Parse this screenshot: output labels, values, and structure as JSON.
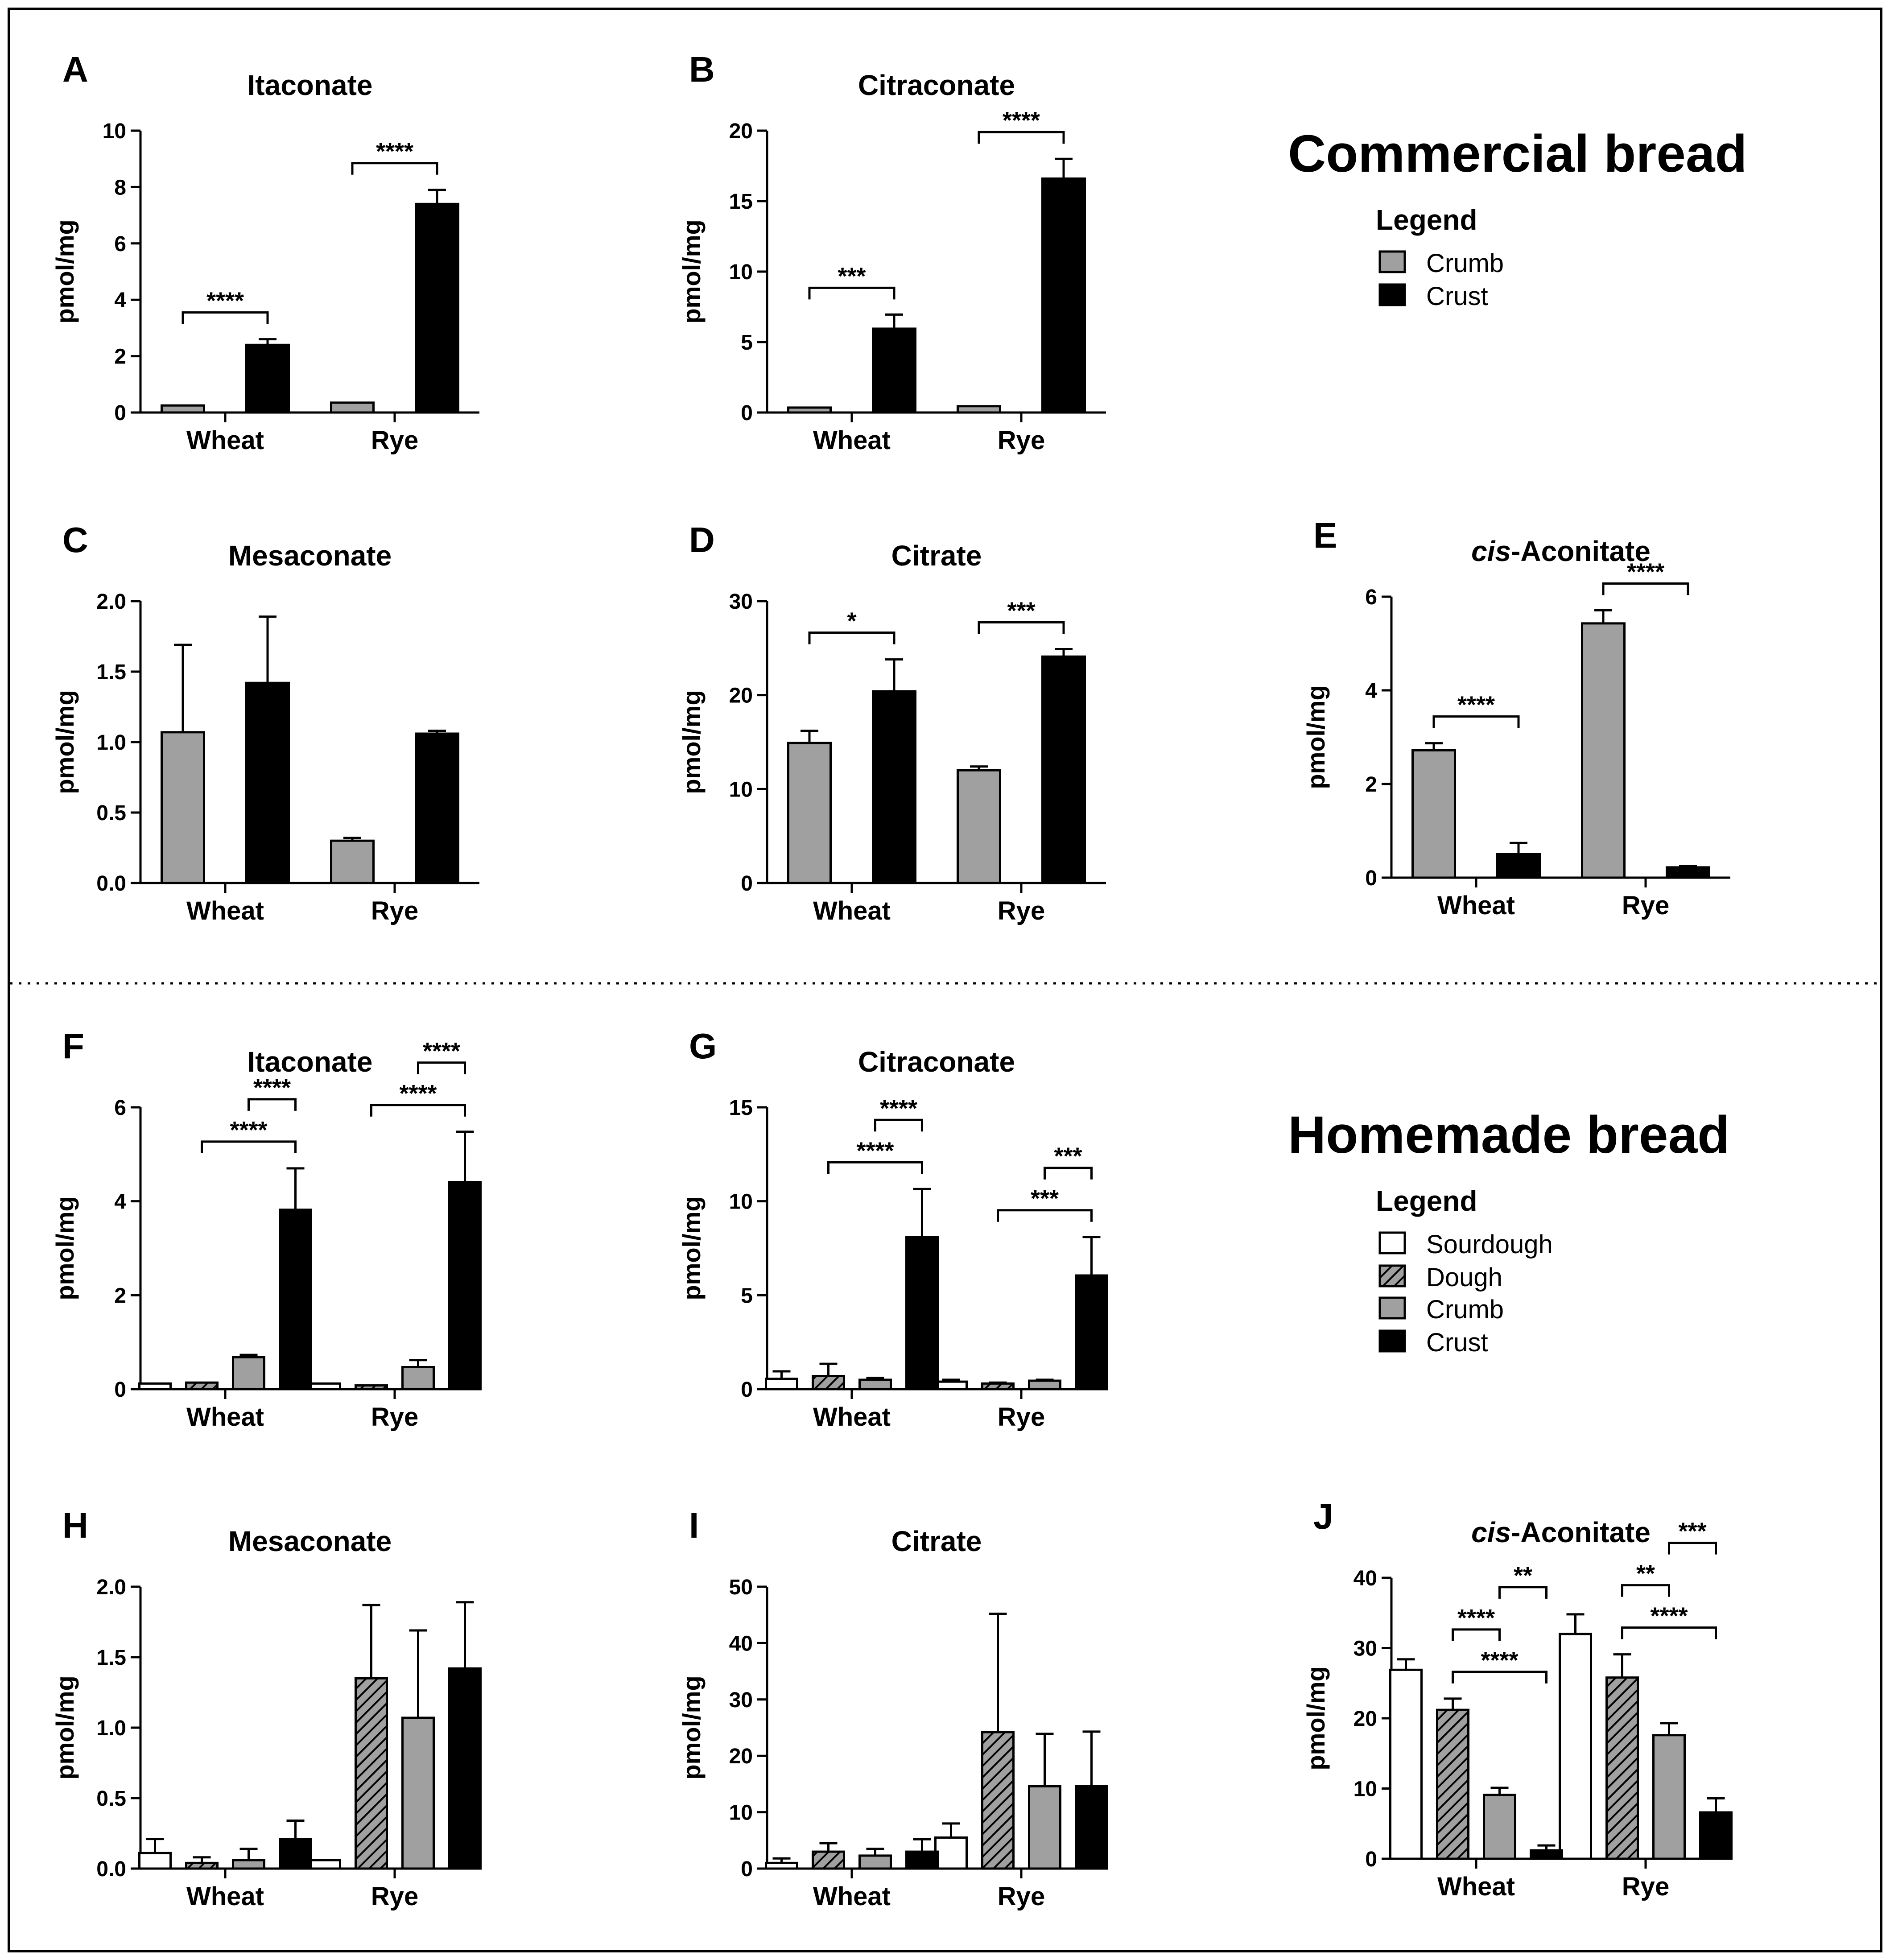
{
  "sections": [
    {
      "title": "Commercial bread",
      "legend_title": "Legend",
      "legend_items": [
        "Crumb",
        "Crust"
      ]
    },
    {
      "title": "Homemade bread",
      "legend_title": "Legend",
      "legend_items": [
        "Sourdough",
        "Dough",
        "Crumb",
        "Crust"
      ]
    }
  ],
  "colors": {
    "Sourdough": "#ffffff",
    "Dough": "#a0a0a0",
    "Crumb": "#a0a0a0",
    "Crust": "#000000"
  },
  "chart_data": [
    {
      "panel": "A",
      "type": "bar",
      "title": "Itaconate",
      "ylabel": "pmol/mg",
      "categories": [
        "Wheat",
        "Rye"
      ],
      "ylim": [
        0,
        10
      ],
      "yticks": [
        "0",
        "2",
        "4",
        "6",
        "8",
        "10"
      ],
      "series": [
        {
          "name": "Crumb",
          "values": [
            0.25,
            0.35
          ],
          "errors": [
            0,
            0
          ]
        },
        {
          "name": "Crust",
          "values": [
            2.4,
            7.4
          ],
          "errors": [
            0.2,
            0.5
          ]
        }
      ],
      "significance": [
        {
          "group": "Wheat",
          "from": "Crumb",
          "to": "Crust",
          "label": "****"
        },
        {
          "group": "Rye",
          "from": "Crumb",
          "to": "Crust",
          "label": "****"
        }
      ]
    },
    {
      "panel": "B",
      "type": "bar",
      "title": "Citraconate",
      "ylabel": "pmol/mg",
      "categories": [
        "Wheat",
        "Rye"
      ],
      "ylim": [
        0,
        20
      ],
      "yticks": [
        "0",
        "5",
        "10",
        "15",
        "20"
      ],
      "series": [
        {
          "name": "Crumb",
          "values": [
            0.35,
            0.45
          ],
          "errors": [
            0,
            0
          ]
        },
        {
          "name": "Crust",
          "values": [
            5.95,
            16.6
          ],
          "errors": [
            1.0,
            1.4
          ]
        }
      ],
      "significance": [
        {
          "group": "Wheat",
          "from": "Crumb",
          "to": "Crust",
          "label": "***"
        },
        {
          "group": "Rye",
          "from": "Crumb",
          "to": "Crust",
          "label": "****"
        }
      ]
    },
    {
      "panel": "C",
      "type": "bar",
      "title": "Mesaconate",
      "ylabel": "pmol/mg",
      "categories": [
        "Wheat",
        "Rye"
      ],
      "ylim": [
        0,
        2.0
      ],
      "yticks": [
        "0.0",
        "0.5",
        "1.0",
        "1.5",
        "2.0"
      ],
      "series": [
        {
          "name": "Crumb",
          "values": [
            1.07,
            0.3
          ],
          "errors": [
            0.62,
            0.02
          ]
        },
        {
          "name": "Crust",
          "values": [
            1.42,
            1.06
          ],
          "errors": [
            0.47,
            0.02
          ]
        }
      ],
      "significance": []
    },
    {
      "panel": "D",
      "type": "bar",
      "title": "Citrate",
      "ylabel": "pmol/mg",
      "categories": [
        "Wheat",
        "Rye"
      ],
      "ylim": [
        0,
        30
      ],
      "yticks": [
        "0",
        "10",
        "20",
        "30"
      ],
      "series": [
        {
          "name": "Crumb",
          "values": [
            14.9,
            12.0
          ],
          "errors": [
            1.3,
            0.4
          ]
        },
        {
          "name": "Crust",
          "values": [
            20.4,
            24.1
          ],
          "errors": [
            3.4,
            0.8
          ]
        }
      ],
      "significance": [
        {
          "group": "Wheat",
          "from": "Crumb",
          "to": "Crust",
          "label": "*"
        },
        {
          "group": "Rye",
          "from": "Crumb",
          "to": "Crust",
          "label": "***"
        }
      ]
    },
    {
      "panel": "E",
      "type": "bar",
      "title": "cis-Aconitate",
      "ylabel": "pmol/mg",
      "categories": [
        "Wheat",
        "Rye"
      ],
      "ylim": [
        0,
        6
      ],
      "yticks": [
        "0",
        "2",
        "4",
        "6"
      ],
      "series": [
        {
          "name": "Crumb",
          "values": [
            2.72,
            5.43
          ],
          "errors": [
            0.15,
            0.28
          ]
        },
        {
          "name": "Crust",
          "values": [
            0.5,
            0.22
          ],
          "errors": [
            0.24,
            0.03
          ]
        }
      ],
      "significance": [
        {
          "group": "Wheat",
          "from": "Crumb",
          "to": "Crust",
          "label": "****"
        },
        {
          "group": "Rye",
          "from": "Crumb",
          "to": "Crust",
          "label": "****"
        }
      ]
    },
    {
      "panel": "F",
      "type": "bar",
      "title": "Itaconate",
      "ylabel": "pmol/mg",
      "categories": [
        "Wheat",
        "Rye"
      ],
      "ylim": [
        0,
        6
      ],
      "yticks": [
        "0",
        "2",
        "4",
        "6"
      ],
      "series": [
        {
          "name": "Sourdough",
          "values": [
            0.12,
            0.12
          ],
          "errors": [
            0,
            0
          ]
        },
        {
          "name": "Dough",
          "values": [
            0.14,
            0.08
          ],
          "errors": [
            0,
            0
          ]
        },
        {
          "name": "Crumb",
          "values": [
            0.68,
            0.47
          ],
          "errors": [
            0.05,
            0.15
          ]
        },
        {
          "name": "Crust",
          "values": [
            3.82,
            4.41
          ],
          "errors": [
            0.88,
            1.07
          ]
        }
      ],
      "significance": [
        {
          "group": "Wheat",
          "from": "Dough",
          "to": "Crust",
          "label": "****"
        },
        {
          "group": "Wheat",
          "from": "Crumb",
          "to": "Crust",
          "label": "****"
        },
        {
          "group": "Rye",
          "from": "Dough",
          "to": "Crust",
          "label": "****"
        },
        {
          "group": "Rye",
          "from": "Crumb",
          "to": "Crust",
          "label": "****"
        }
      ]
    },
    {
      "panel": "G",
      "type": "bar",
      "title": "Citraconate",
      "ylabel": "pmol/mg",
      "categories": [
        "Wheat",
        "Rye"
      ],
      "ylim": [
        0,
        15
      ],
      "yticks": [
        "0",
        "5",
        "10",
        "15"
      ],
      "series": [
        {
          "name": "Sourdough",
          "values": [
            0.55,
            0.4
          ],
          "errors": [
            0.4,
            0.1
          ]
        },
        {
          "name": "Dough",
          "values": [
            0.7,
            0.3
          ],
          "errors": [
            0.65,
            0.05
          ]
        },
        {
          "name": "Crumb",
          "values": [
            0.5,
            0.45
          ],
          "errors": [
            0.1,
            0.05
          ]
        },
        {
          "name": "Crust",
          "values": [
            8.1,
            6.05
          ],
          "errors": [
            2.55,
            2.05
          ]
        }
      ],
      "significance": [
        {
          "group": "Wheat",
          "from": "Dough",
          "to": "Crust",
          "label": "****"
        },
        {
          "group": "Wheat",
          "from": "Crumb",
          "to": "Crust",
          "label": "****"
        },
        {
          "group": "Rye",
          "from": "Dough",
          "to": "Crust",
          "label": "***"
        },
        {
          "group": "Rye",
          "from": "Crumb",
          "to": "Crust",
          "label": "***"
        }
      ]
    },
    {
      "panel": "H",
      "type": "bar",
      "title": "Mesaconate",
      "ylabel": "pmol/mg",
      "categories": [
        "Wheat",
        "Rye"
      ],
      "ylim": [
        0,
        2.0
      ],
      "yticks": [
        "0.0",
        "0.5",
        "1.0",
        "1.5",
        "2.0"
      ],
      "series": [
        {
          "name": "Sourdough",
          "values": [
            0.11,
            0.06
          ],
          "errors": [
            0.1,
            0
          ]
        },
        {
          "name": "Dough",
          "values": [
            0.04,
            1.35
          ],
          "errors": [
            0.04,
            0.52
          ]
        },
        {
          "name": "Crumb",
          "values": [
            0.06,
            1.07
          ],
          "errors": [
            0.08,
            0.62
          ]
        },
        {
          "name": "Crust",
          "values": [
            0.21,
            1.42
          ],
          "errors": [
            0.13,
            0.47
          ]
        }
      ],
      "significance": []
    },
    {
      "panel": "I",
      "type": "bar",
      "title": "Citrate",
      "ylabel": "pmol/mg",
      "categories": [
        "Wheat",
        "Rye"
      ],
      "ylim": [
        0,
        50
      ],
      "yticks": [
        "0",
        "10",
        "20",
        "30",
        "40",
        "50"
      ],
      "series": [
        {
          "name": "Sourdough",
          "values": [
            1.0,
            5.5
          ],
          "errors": [
            0.8,
            2.5
          ]
        },
        {
          "name": "Dough",
          "values": [
            3.0,
            24.2
          ],
          "errors": [
            1.5,
            21.0
          ]
        },
        {
          "name": "Crumb",
          "values": [
            2.3,
            14.6
          ],
          "errors": [
            1.2,
            9.3
          ]
        },
        {
          "name": "Crust",
          "values": [
            3.0,
            14.6
          ],
          "errors": [
            2.2,
            9.7
          ]
        }
      ],
      "significance": []
    },
    {
      "panel": "J",
      "type": "bar",
      "title": "cis-Aconitate",
      "ylabel": "pmol/mg",
      "categories": [
        "Wheat",
        "Rye"
      ],
      "ylim": [
        0,
        40
      ],
      "yticks": [
        "0",
        "10",
        "20",
        "30",
        "40"
      ],
      "series": [
        {
          "name": "Sourdough",
          "values": [
            26.9,
            32.0
          ],
          "errors": [
            1.5,
            2.8
          ]
        },
        {
          "name": "Dough",
          "values": [
            21.2,
            25.8
          ],
          "errors": [
            1.6,
            3.3
          ]
        },
        {
          "name": "Crumb",
          "values": [
            9.1,
            17.6
          ],
          "errors": [
            1.0,
            1.7
          ]
        },
        {
          "name": "Crust",
          "values": [
            1.2,
            6.6
          ],
          "errors": [
            0.7,
            2.0
          ]
        }
      ],
      "significance": [
        {
          "group": "Wheat",
          "from": "Dough",
          "to": "Crust",
          "label": "****"
        },
        {
          "group": "Wheat",
          "from": "Dough",
          "to": "Crumb",
          "label": "****"
        },
        {
          "group": "Wheat",
          "from": "Crumb",
          "to": "Crust",
          "label": "**"
        },
        {
          "group": "Rye",
          "from": "Dough",
          "to": "Crust",
          "label": "****"
        },
        {
          "group": "Rye",
          "from": "Dough",
          "to": "Crumb",
          "label": "**"
        },
        {
          "group": "Rye",
          "from": "Crumb",
          "to": "Crust",
          "label": "***"
        }
      ]
    }
  ]
}
